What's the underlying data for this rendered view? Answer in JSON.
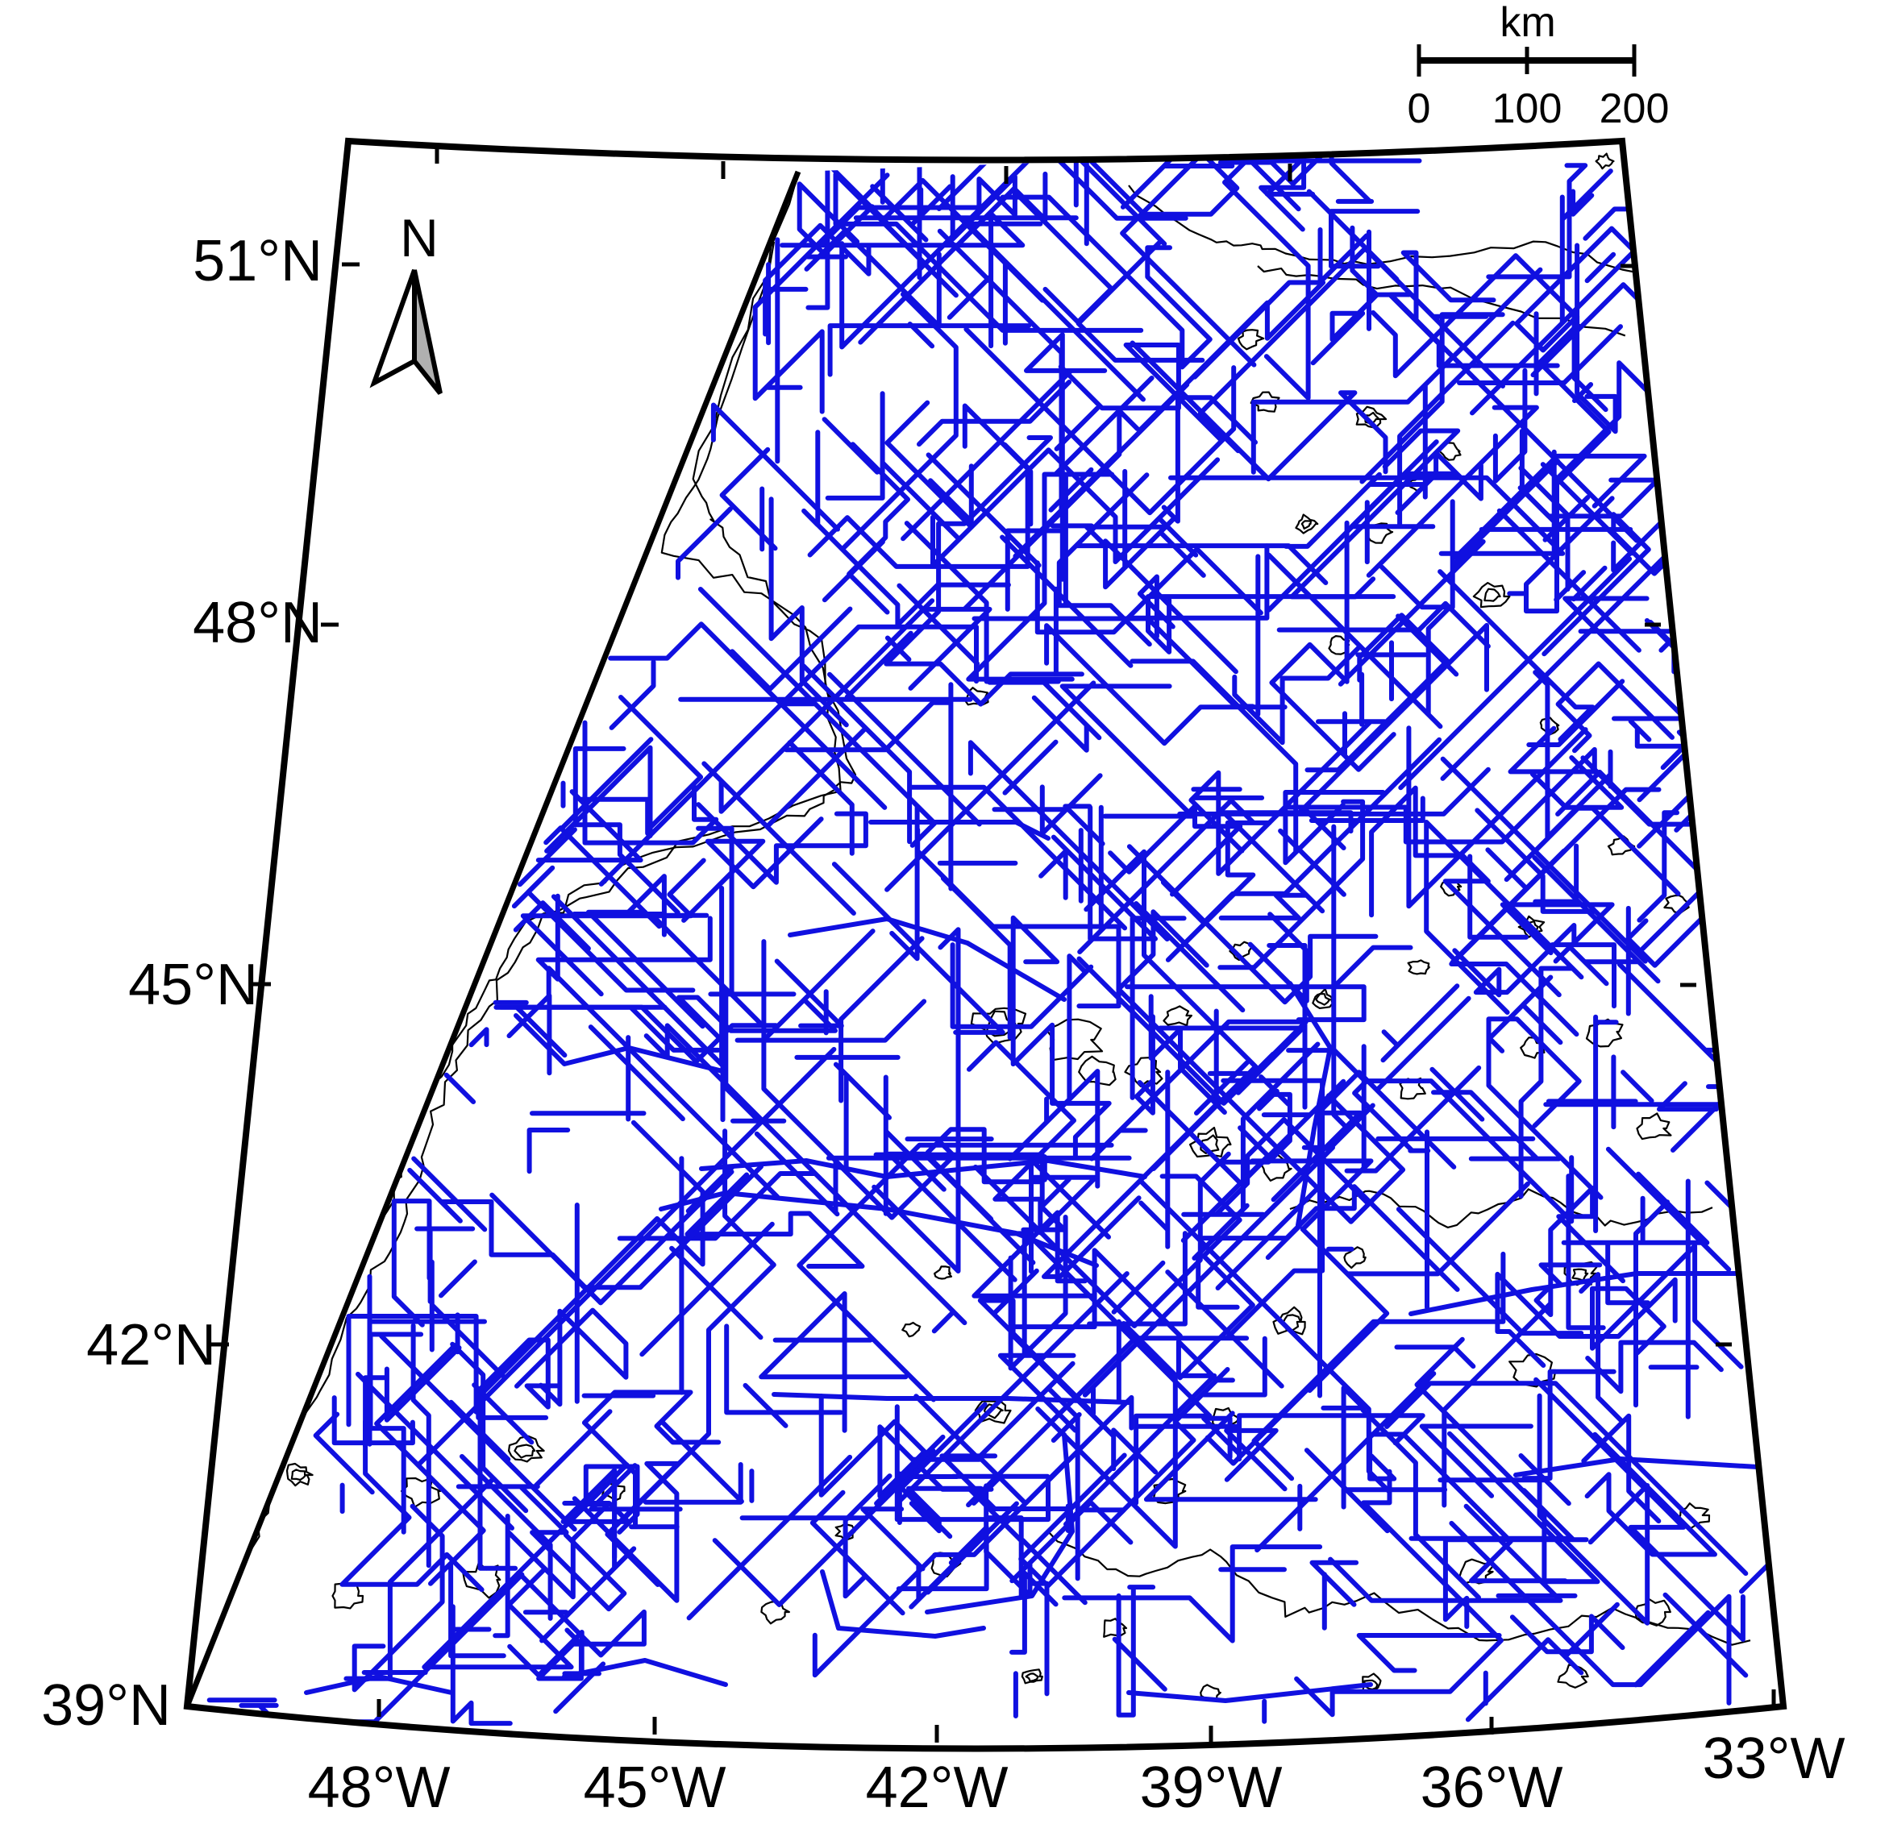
{
  "map": {
    "north_arrow_label": "N",
    "scale_bar": {
      "unit": "km",
      "ticks": [
        "0",
        "100",
        "200"
      ]
    },
    "lat_labels": [
      "51°N",
      "48°N",
      "45°N",
      "42°N",
      "39°N"
    ],
    "lon_labels": [
      "48°W",
      "45°W",
      "42°W",
      "39°W",
      "36°W",
      "33°W"
    ],
    "extent": {
      "lon_min": -50,
      "lon_max": -33,
      "lat_min": 39,
      "lat_max": 52
    },
    "colors": {
      "tracks": "#1010e0",
      "contours": "#000000",
      "frame": "#000000",
      "arrow_fill": "#b0b0b0"
    },
    "layers": [
      "survey-track-lines",
      "bathymetric-contours",
      "land-mask"
    ]
  }
}
